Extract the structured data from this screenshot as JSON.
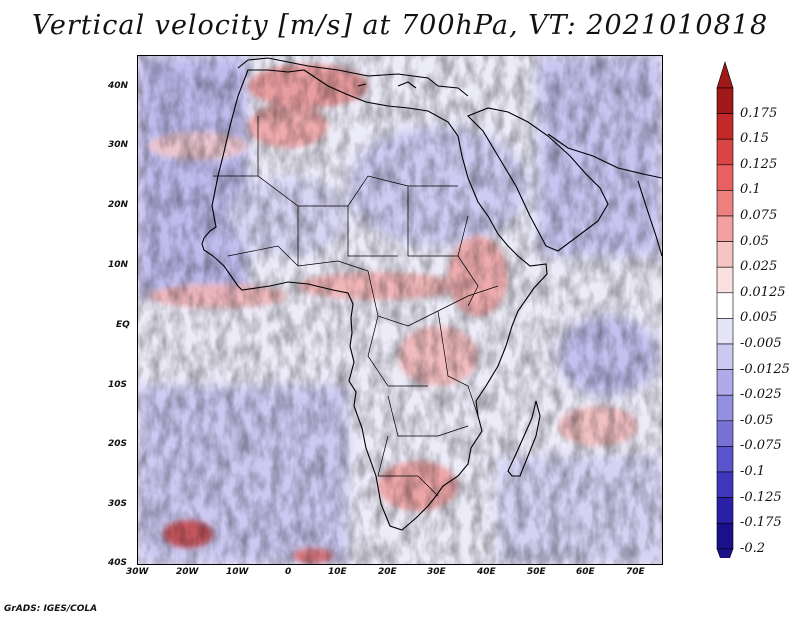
{
  "title": "Vertical velocity [m/s] at 700hPa, VT: 2021010818",
  "footer": "GrADS: IGES/COLA",
  "map": {
    "lat_range": [
      -40,
      45
    ],
    "lon_range": [
      -30,
      75
    ],
    "lat_ticks": [
      "40N",
      "30N",
      "20N",
      "10N",
      "EQ",
      "10S",
      "20S",
      "30S",
      "40S"
    ],
    "lon_ticks": [
      "30W",
      "20W",
      "10W",
      "0",
      "10E",
      "20E",
      "30E",
      "40E",
      "50E",
      "60E",
      "70E"
    ]
  },
  "colorbar": {
    "levels": [
      "0.175",
      "0.15",
      "0.125",
      "0.1",
      "0.075",
      "0.05",
      "0.025",
      "0.0125",
      "0.005",
      "-0.005",
      "-0.0125",
      "-0.025",
      "-0.05",
      "-0.075",
      "-0.1",
      "-0.125",
      "-0.175",
      "-0.2"
    ],
    "colors": [
      "#a01818",
      "#c42828",
      "#d94444",
      "#e86060",
      "#ee8080",
      "#f2a0a0",
      "#f7c4c4",
      "#fbe0e0",
      "#ffffff",
      "#e6e4f7",
      "#ccc8f0",
      "#b0aae8",
      "#9490e0",
      "#7872d6",
      "#5c54cc",
      "#3f36bd",
      "#2a20a8",
      "#1a108a"
    ]
  }
}
